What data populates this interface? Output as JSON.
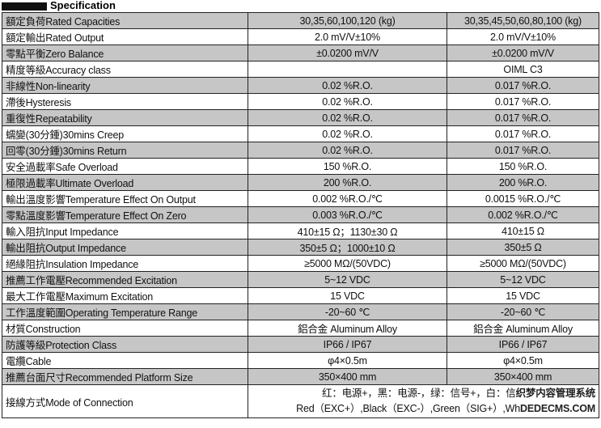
{
  "title": "Specification",
  "rows": [
    {
      "label": "額定負荷Rated Capacities",
      "a": "30,35,60,100,120 (kg)",
      "b": "30,35,45,50,60,80,100 (kg)"
    },
    {
      "label": "額定輸出Rated Output",
      "a": "2.0 mV/V±10%",
      "b": "2.0 mV/V±10%"
    },
    {
      "label": "零點平衡Zero Balance",
      "a": "±0.0200 mV/V",
      "b": "±0.0200 mV/V"
    },
    {
      "label": "精度等級Accuracy class",
      "a": "",
      "b": "OIML C3"
    },
    {
      "label": "非線性Non-linearity",
      "a": "0.02 %R.O.",
      "b": "0.017 %R.O."
    },
    {
      "label": "滯後Hysteresis",
      "a": "0.02 %R.O.",
      "b": "0.017 %R.O."
    },
    {
      "label": "重復性Repeatability",
      "a": "0.02 %R.O.",
      "b": "0.017 %R.O."
    },
    {
      "label": "蠕變(30分鍾)30mins Creep",
      "a": "0.02 %R.O.",
      "b": "0.017 %R.O."
    },
    {
      "label": "回零(30分鍾)30mins Return",
      "a": "0.02 %R.O.",
      "b": "0.017 %R.O."
    },
    {
      "label": "安全過載率Safe Overload",
      "a": "150 %R.O.",
      "b": "150 %R.O."
    },
    {
      "label": "極限過載率Ultimate Overload",
      "a": "200 %R.O.",
      "b": "200 %R.O."
    },
    {
      "label": "輸出溫度影響Temperature Effect On Output",
      "a": "0.002 %R.O./℃",
      "b": "0.0015 %R.O./℃"
    },
    {
      "label": "零點溫度影響Temperature Effect On Zero",
      "a": "0.003 %R.O./℃",
      "b": "0.002 %R.O./℃"
    },
    {
      "label": "輸入阻抗Input Impedance",
      "a": "410±15 Ω；1130±30 Ω",
      "b": "410±15 Ω"
    },
    {
      "label": "輸出阻抗Output Impedance",
      "a": "350±5 Ω；1000±10 Ω",
      "b": "350±5 Ω"
    },
    {
      "label": "絕緣阻抗Insulation Impedance",
      "a": "≥5000 MΩ/(50VDC)",
      "b": "≥5000 MΩ/(50VDC)"
    },
    {
      "label": "推薦工作電壓Recommended Excitation",
      "a": "5~12 VDC",
      "b": "5~12 VDC"
    },
    {
      "label": "最大工作電壓Maximum Excitation",
      "a": "15 VDC",
      "b": "15 VDC"
    },
    {
      "label": "工作溫度範圍Operating Temperature Range",
      "a": "-20~60 ℃",
      "b": "-20~60 ℃"
    },
    {
      "label": "材質Construction",
      "a": "鋁合金 Aluminum Alloy",
      "b": "鋁合金 Aluminum Alloy"
    },
    {
      "label": "防護等級Protection Class",
      "a": "IP66 / IP67",
      "b": "IP66 / IP67"
    },
    {
      "label": "電纜Cable",
      "a": "φ4×0.5m",
      "b": "φ4×0.5m"
    },
    {
      "label": "推薦台面尺寸Recommended Platform Size",
      "a": "350×400 mm",
      "b": "350×400 mm"
    }
  ],
  "connection": {
    "label": "接線方式Mode of Connection",
    "line1": "红：电源+，黑：电源-，绿：信号+，白：信",
    "line2": "Red（EXC+）,Black（EXC-）,Green（SIG+）,Wh",
    "watermark1": "织梦内容管理系统",
    "watermark2": "DEDECMS.COM"
  }
}
